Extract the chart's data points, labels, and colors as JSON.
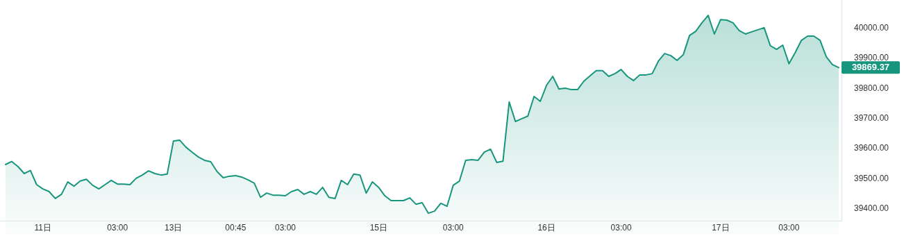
{
  "chart_data": {
    "type": "area",
    "categories": [
      null,
      null,
      null,
      null,
      null,
      null,
      "11日",
      null,
      null,
      null,
      null,
      null,
      null,
      null,
      null,
      null,
      null,
      null,
      "03:00",
      null,
      null,
      null,
      null,
      null,
      null,
      null,
      null,
      "13日",
      null,
      null,
      null,
      null,
      null,
      null,
      null,
      null,
      null,
      "00:45",
      null,
      null,
      null,
      null,
      null,
      null,
      null,
      "03:00",
      null,
      null,
      null,
      null,
      null,
      null,
      null,
      null,
      null,
      null,
      null,
      null,
      null,
      null,
      "15日",
      null,
      null,
      null,
      null,
      null,
      null,
      null,
      null,
      null,
      null,
      null,
      "03:00",
      null,
      null,
      null,
      null,
      null,
      null,
      null,
      null,
      null,
      null,
      null,
      null,
      null,
      null,
      "16日",
      null,
      null,
      null,
      null,
      null,
      null,
      null,
      null,
      null,
      null,
      null,
      "03:00",
      null,
      null,
      null,
      null,
      null,
      null,
      null,
      null,
      null,
      null,
      null,
      null,
      null,
      null,
      null,
      "17日",
      null,
      null,
      null,
      null,
      null,
      null,
      null,
      null,
      null,
      null,
      "03:00",
      null,
      null,
      null,
      null,
      null,
      null,
      null,
      null
    ],
    "series": [
      {
        "color": "#17967d",
        "values": [
          39547,
          39557,
          39540,
          39517,
          39527,
          39480,
          39466,
          39457,
          39434,
          39448,
          39489,
          39475,
          39492,
          39498,
          39478,
          39466,
          39480,
          39494,
          39482,
          39482,
          39480,
          39501,
          39512,
          39526,
          39517,
          39512,
          39515,
          39625,
          39628,
          39605,
          39588,
          39572,
          39561,
          39556,
          39524,
          39503,
          39508,
          39510,
          39505,
          39496,
          39485,
          39438,
          39452,
          39445,
          39445,
          39443,
          39457,
          39464,
          39448,
          39457,
          39448,
          39471,
          39438,
          39434,
          39494,
          39480,
          39515,
          39512,
          39452,
          39489,
          39471,
          39443,
          39427,
          39427,
          39427,
          39436,
          39415,
          39420,
          39385,
          39392,
          39418,
          39408,
          39478,
          39492,
          39561,
          39563,
          39561,
          39588,
          39598,
          39554,
          39558,
          39755,
          39690,
          39699,
          39708,
          39773,
          39757,
          39810,
          39840,
          39798,
          39801,
          39796,
          39796,
          39824,
          39842,
          39859,
          39859,
          39840,
          39849,
          39863,
          39840,
          39826,
          39845,
          39845,
          39849,
          39891,
          39916,
          39909,
          39893,
          39912,
          39976,
          39990,
          40018,
          40043,
          39981,
          40029,
          40027,
          40018,
          39992,
          39981,
          39988,
          39995,
          40002,
          39942,
          39930,
          39944,
          39882,
          39919,
          39960,
          39974,
          39974,
          39960,
          39905,
          39879,
          39869.37
        ]
      }
    ],
    "ylim": [
      39360,
      40094
    ],
    "yticks": [
      {
        "value": 39400,
        "label": "39400.00"
      },
      {
        "value": 39500,
        "label": "39500.00"
      },
      {
        "value": 39600,
        "label": "39600.00"
      },
      {
        "value": 39700,
        "label": "39700.00"
      },
      {
        "value": 39800,
        "label": "39800.00"
      },
      {
        "value": 39900,
        "label": "39900.00"
      },
      {
        "value": 40000,
        "label": "40000.00"
      }
    ],
    "annotations": [
      "39869.37"
    ]
  }
}
